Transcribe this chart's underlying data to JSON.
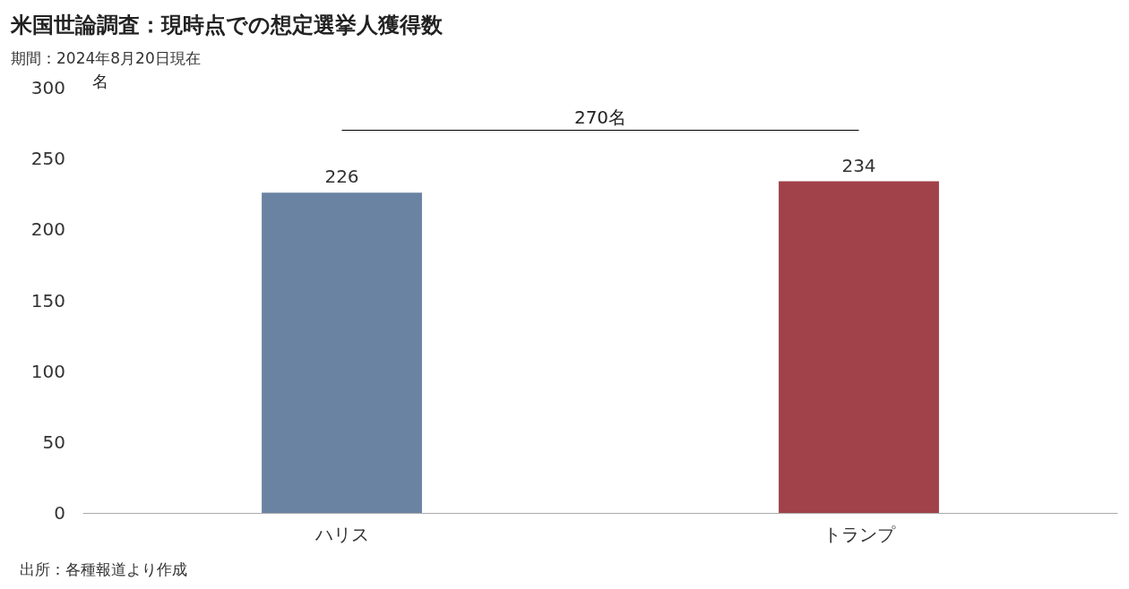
{
  "chart_data": {
    "type": "bar",
    "title": "米国世論調査：現時点での想定選挙人獲得数",
    "subtitle": "期間：2024年8月20日現在",
    "ylabel": "名",
    "categories": [
      "ハリス",
      "トランプ"
    ],
    "values": [
      226,
      234
    ],
    "colors": [
      "#6a83a3",
      "#a1414a"
    ],
    "ylim": [
      0,
      300
    ],
    "yticks": [
      0,
      50,
      100,
      150,
      200,
      250,
      300
    ],
    "grid": false,
    "data_labels": true,
    "ref_lines": [
      {
        "axis": "y",
        "value": 270,
        "label": "270名",
        "color": "#000000",
        "line_style": "solid"
      }
    ],
    "annotations": [
      "出所：各種報道より作成"
    ]
  }
}
